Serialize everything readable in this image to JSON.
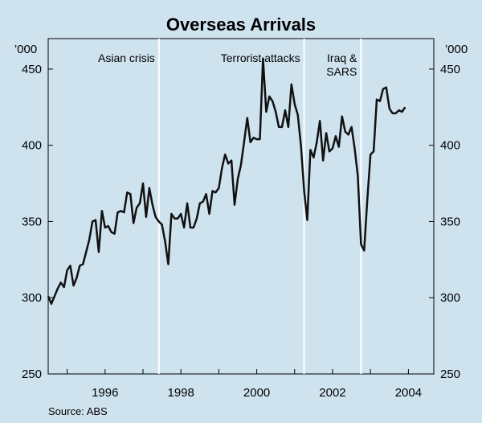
{
  "chart_data": {
    "type": "line",
    "title": "Overseas Arrivals",
    "units": {
      "left": "’000",
      "right": "’000"
    },
    "ylim": [
      250,
      470
    ],
    "yticks": [
      250,
      300,
      350,
      400,
      450
    ],
    "xlim": [
      1994.5,
      2004.67
    ],
    "xtick_labels": [
      {
        "x": 1996.0,
        "label": "1996"
      },
      {
        "x": 1998.0,
        "label": "1998"
      },
      {
        "x": 2000.0,
        "label": "2000"
      },
      {
        "x": 2002.0,
        "label": "2002"
      },
      {
        "x": 2004.0,
        "label": "2004"
      }
    ],
    "year_ticks": [
      1995,
      1996,
      1997,
      1998,
      1999,
      2000,
      2001,
      2002,
      2003,
      2004
    ],
    "vlines": [
      {
        "x": 1997.42,
        "label": "Asian crisis"
      },
      {
        "x": 2001.25,
        "label": "Terrorist attacks"
      },
      {
        "x": 2002.75,
        "label": "Iraq & SARS",
        "label_lines": [
          "Iraq &",
          "SARS"
        ]
      }
    ],
    "source": "Source: ABS",
    "series": [
      {
        "name": "Overseas arrivals",
        "x_start": 1994.5,
        "x_step": 0.08333,
        "values": [
          301,
          296,
          301,
          306,
          310,
          307,
          318,
          321,
          308,
          313,
          321,
          322,
          330,
          338,
          350,
          351,
          330,
          357,
          346,
          347,
          343,
          342,
          356,
          357,
          356,
          369,
          368,
          349,
          359,
          362,
          375,
          353,
          372,
          361,
          353,
          350,
          348,
          337,
          322,
          355,
          352,
          352,
          355,
          346,
          362,
          346,
          346,
          352,
          362,
          363,
          368,
          355,
          370,
          369,
          372,
          385,
          394,
          388,
          390,
          361,
          378,
          387,
          402,
          418,
          402,
          405,
          404,
          404,
          457,
          422,
          432,
          429,
          422,
          412,
          412,
          423,
          412,
          440,
          427,
          420,
          400,
          370,
          351,
          397,
          392,
          402,
          416,
          390,
          408,
          396,
          398,
          406,
          399,
          419,
          409,
          407,
          412,
          398,
          380,
          335,
          331,
          364,
          394,
          396,
          430,
          429,
          437,
          438,
          424,
          421,
          421,
          423,
          422,
          425
        ]
      }
    ]
  }
}
